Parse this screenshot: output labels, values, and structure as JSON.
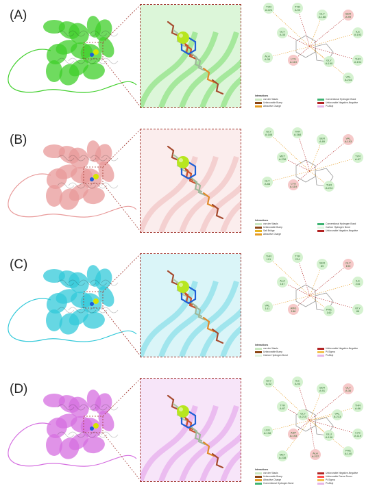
{
  "panels": [
    {
      "label": "(A)",
      "color": "#3fcf2a",
      "residues": [
        "TYR A:224",
        "TYR A:90",
        "GLY A:188",
        "SER A:99",
        "ILE A:193",
        "GLY A:35",
        "ALA A:35",
        "LYS A:119",
        "GLY A:190",
        "THR A:194",
        "VAL A:234"
      ],
      "legend_title": "Interactions",
      "legend": [
        {
          "text": "van der Waals",
          "color": "#c8e6c0"
        },
        {
          "text": "Conventional Hydrogen Bond",
          "color": "#3cb371"
        },
        {
          "text": "Unfavorable Bump",
          "color": "#8b4513"
        },
        {
          "text": "Unfavorable Negative-Negative",
          "color": "#b22222"
        },
        {
          "text": "Attractive Charge",
          "color": "#e69b1f"
        },
        {
          "text": "Pi-Alkyl",
          "color": "#e6b4e6"
        }
      ]
    },
    {
      "label": "(B)",
      "color": "#e89a9a",
      "residues": [
        "GLY A:188",
        "THR A:368",
        "SER A:89",
        "VAL A:193",
        "TYR A:87",
        "MET A:238",
        "GLY A:88",
        "LYS A:119",
        "THR A:224"
      ],
      "legend_title": "Interactions",
      "legend": [
        {
          "text": "van der Waals",
          "color": "#c8e6c0"
        },
        {
          "text": "Conventional Hydrogen Bond",
          "color": "#3cb371"
        },
        {
          "text": "Unfavorable Bump",
          "color": "#8b4513"
        },
        {
          "text": "Carbon Hydrogen Bond",
          "color": "#dff2df"
        },
        {
          "text": "Salt Bridge",
          "color": "#e6b41f"
        },
        {
          "text": "Unfavorable Negative-Negative",
          "color": "#b22222"
        },
        {
          "text": "Attractive Charge",
          "color": "#e69b1f"
        }
      ]
    },
    {
      "label": "(C)",
      "color": "#33c9d9",
      "residues": [
        "THR 191",
        "TYR 224",
        "SER 89",
        "GLY 190",
        "ILE 216",
        "ALA 187",
        "VAL 141",
        "ARG 186",
        "PHE 140",
        "GLY 88"
      ],
      "legend_title": "Interactions",
      "legend": [
        {
          "text": "van der Waals",
          "color": "#c8e6c0"
        },
        {
          "text": "Unfavorable Negative-Negative",
          "color": "#b22222"
        },
        {
          "text": "Unfavorable Bump",
          "color": "#8b4513"
        },
        {
          "text": "Pi-Sigma",
          "color": "#f2c14e"
        },
        {
          "text": "Carbon Hydrogen Bond",
          "color": "#dff2df"
        },
        {
          "text": "Pi-Alkyl",
          "color": "#e6b4e6"
        }
      ]
    },
    {
      "label": "(D)",
      "color": "#d56fe0",
      "residues": [
        "GLY A:32",
        "ILE A:90",
        "SER A:91",
        "GLY A:36",
        "THR A:86",
        "TYR A:87",
        "LEU A:198",
        "ASP A:193",
        "GLU A:196",
        "LYS A:119",
        "PHE A:140",
        "ALA A:237",
        "MET A:238",
        "GLY A:210",
        "VAL A:213"
      ],
      "legend_title": "Interactions",
      "legend": [
        {
          "text": "van der Waals",
          "color": "#c8e6c0"
        },
        {
          "text": "Unfavorable Negative-Negative",
          "color": "#b22222"
        },
        {
          "text": "Unfavorable Bump",
          "color": "#8b4513"
        },
        {
          "text": "Unfavorable Donor-Donor",
          "color": "#ff4d4d"
        },
        {
          "text": "Attractive Charge",
          "color": "#e69b1f"
        },
        {
          "text": "Pi-Sigma",
          "color": "#f2c14e"
        },
        {
          "text": "Conventional Hydrogen Bond",
          "color": "#3cb371"
        },
        {
          "text": "Pi-Alkyl",
          "color": "#e6b4e6"
        }
      ]
    }
  ]
}
